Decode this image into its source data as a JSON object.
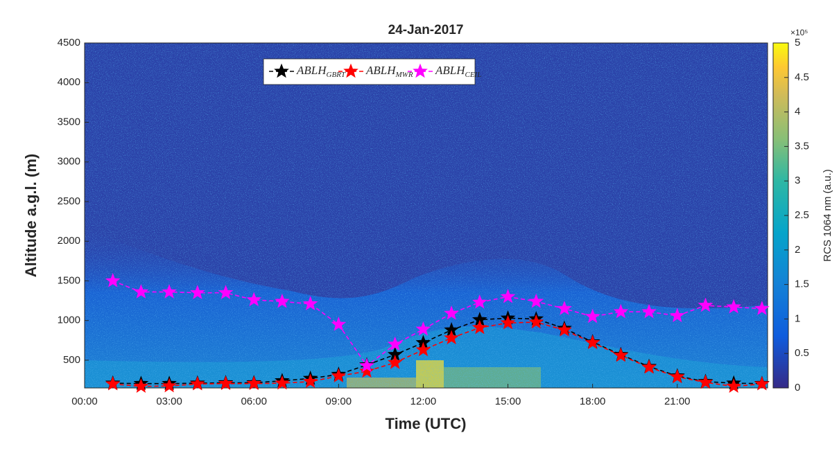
{
  "chart_data": {
    "type": "line",
    "title": "24-Jan-2017",
    "x_label": "Time (UTC)",
    "y_label": "Altitude a.g.l. (m)",
    "x": [
      1,
      2,
      3,
      4,
      5,
      6,
      7,
      8,
      9,
      10,
      11,
      12,
      13,
      14,
      15,
      16,
      17,
      18,
      19,
      20,
      21,
      22,
      23,
      24
    ],
    "series": [
      {
        "name": "ABLH",
        "subscript": "GBRT",
        "color": "#000000",
        "values": [
          210,
          205,
          205,
          210,
          215,
          215,
          240,
          270,
          320,
          440,
          570,
          720,
          880,
          1010,
          1030,
          1020,
          900,
          730,
          570,
          420,
          300,
          230,
          210,
          205
        ]
      },
      {
        "name": "ABLH",
        "subscript": "MWR",
        "color": "#ff0000",
        "values": [
          200,
          170,
          175,
          200,
          205,
          205,
          210,
          230,
          300,
          360,
          470,
          630,
          780,
          910,
          970,
          980,
          880,
          720,
          560,
          410,
          290,
          220,
          170,
          200
        ]
      },
      {
        "name": "ABLH",
        "subscript": "CEIL",
        "color": "#ff00ff",
        "values": [
          1500,
          1360,
          1360,
          1350,
          1350,
          1260,
          1240,
          1210,
          950,
          430,
          700,
          890,
          1090,
          1230,
          1300,
          1240,
          1150,
          1050,
          1110,
          1110,
          1060,
          1190,
          1170,
          1150
        ]
      }
    ],
    "xlim": [
      0,
      24.2
    ],
    "xticks": [
      {
        "value": 0,
        "label": "00:00"
      },
      {
        "value": 3,
        "label": "03:00"
      },
      {
        "value": 6,
        "label": "06:00"
      },
      {
        "value": 9,
        "label": "09:00"
      },
      {
        "value": 12,
        "label": "12:00"
      },
      {
        "value": 15,
        "label": "15:00"
      },
      {
        "value": 18,
        "label": "18:00"
      },
      {
        "value": 21,
        "label": "21:00"
      }
    ],
    "ylim": [
      150,
      4500
    ],
    "yticks": [
      500,
      1000,
      1500,
      2000,
      2500,
      3000,
      3500,
      4000,
      4500
    ],
    "legend": "top",
    "colorbar": {
      "label": "RCS 1064 nm (a.u.)",
      "multiplier": "×10⁵",
      "lim": [
        0,
        5
      ],
      "ticks": [
        0,
        0.5,
        1,
        1.5,
        2,
        2.5,
        3,
        3.5,
        4,
        4.5,
        5
      ]
    }
  }
}
